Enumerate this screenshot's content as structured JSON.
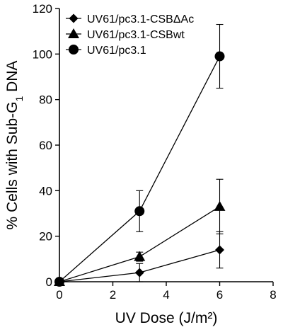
{
  "chart_data": {
    "type": "line",
    "xlabel": "UV Dose (J/m²)",
    "ylabel_main": "% Cells with Sub-G",
    "ylabel_sub": "1",
    "ylabel_tail": " DNA",
    "xlim": [
      0,
      8
    ],
    "ylim": [
      0,
      120
    ],
    "xticks": [
      0,
      2,
      4,
      6,
      8
    ],
    "yticks": [
      0,
      20,
      40,
      60,
      80,
      100,
      120
    ],
    "grid": false,
    "legend_position": "top-left",
    "series": [
      {
        "name": "UV61/pc3.1-CSBΔAc",
        "marker": "diamond",
        "x": [
          0,
          3,
          6
        ],
        "y": [
          0,
          4,
          14
        ],
        "err": [
          0,
          4,
          8
        ]
      },
      {
        "name": "UV61/pc3.1-CSBwt",
        "marker": "triangle",
        "x": [
          0,
          3,
          6
        ],
        "y": [
          0,
          11,
          33
        ],
        "err": [
          0,
          2,
          12
        ]
      },
      {
        "name": "UV61/pc3.1",
        "marker": "circle",
        "x": [
          0,
          3,
          6
        ],
        "y": [
          0,
          31,
          99
        ],
        "err": [
          0,
          9,
          14
        ]
      }
    ]
  }
}
